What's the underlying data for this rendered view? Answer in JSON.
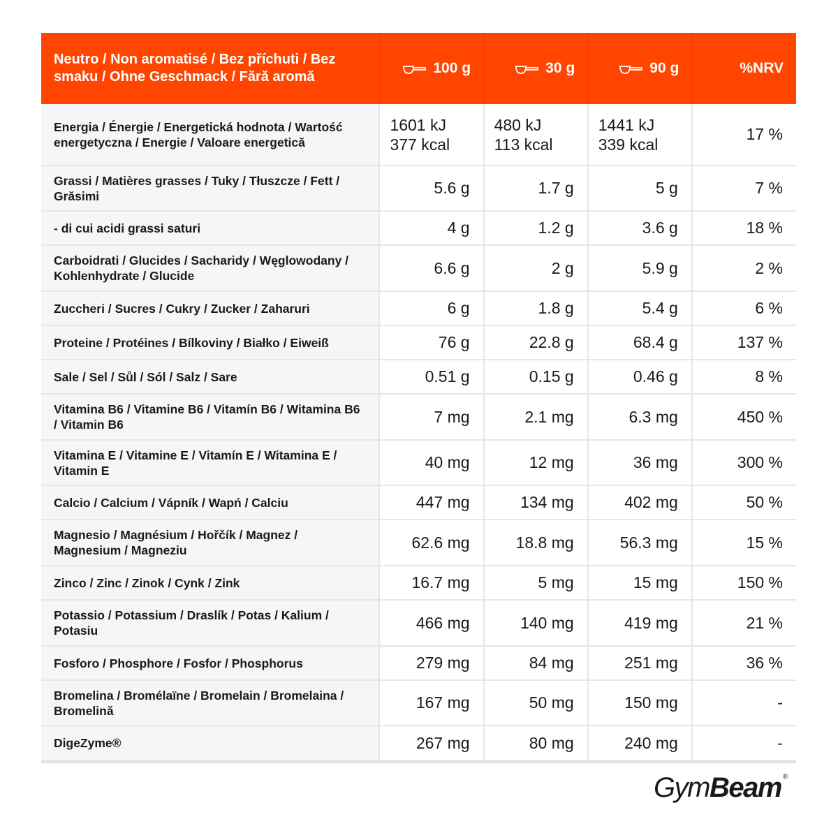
{
  "header": {
    "label": "Neutro / Non aromatisé / Bez příchuti / Bez smaku / Ohne Geschmack / Fără aromă",
    "col1": "100 g",
    "col2": "30 g",
    "col3": "90 g",
    "col4": "%NRV",
    "scoop_icon": "scoop-icon"
  },
  "rows": [
    {
      "name": "Energia / Énergie / Energetická hodnota / Wartość energetyczna / Energie / Valoare energetică",
      "v1a": "1601 kJ",
      "v1b": "377 kcal",
      "v2a": "480 kJ",
      "v2b": "113 kcal",
      "v3a": "1441 kJ",
      "v3b": "339 kcal",
      "nrv": "17 %"
    },
    {
      "name": "Grassi / Matières grasses / Tuky / Tłuszcze / Fett / Grăsimi",
      "v1": "5.6 g",
      "v2": "1.7 g",
      "v3": "5 g",
      "nrv": "7 %"
    },
    {
      "name": "- di cui acidi grassi saturi",
      "v1": "4 g",
      "v2": "1.2 g",
      "v3": "3.6 g",
      "nrv": "18 %"
    },
    {
      "name": "Carboidrati / Glucides / Sacharidy / Węglowodany / Kohlenhydrate / Glucide",
      "v1": "6.6 g",
      "v2": "2 g",
      "v3": "5.9 g",
      "nrv": "2 %"
    },
    {
      "name": "Zuccheri / Sucres / Cukry / Zucker / Zaharuri",
      "v1": "6 g",
      "v2": "1.8 g",
      "v3": "5.4 g",
      "nrv": "6 %"
    },
    {
      "name": "Proteine / Protéines / Bílkoviny / Białko / Eiweiß",
      "v1": "76 g",
      "v2": "22.8 g",
      "v3": "68.4 g",
      "nrv": "137 %"
    },
    {
      "name": "Sale / Sel / Sůl / Sól / Salz / Sare",
      "v1": "0.51 g",
      "v2": "0.15 g",
      "v3": "0.46 g",
      "nrv": "8 %"
    },
    {
      "name": "Vitamina B6 / Vitamine B6 / Vitamín B6 / Witamina B6 / Vitamin B6",
      "v1": "7 mg",
      "v2": "2.1 mg",
      "v3": "6.3 mg",
      "nrv": "450 %"
    },
    {
      "name": "Vitamina E / Vitamine E / Vitamín E / Witamina E / Vitamin E",
      "v1": "40 mg",
      "v2": "12 mg",
      "v3": "36 mg",
      "nrv": "300 %"
    },
    {
      "name": "Calcio / Calcium / Vápník / Wapń / Calciu",
      "v1": "447 mg",
      "v2": "134 mg",
      "v3": "402 mg",
      "nrv": "50 %"
    },
    {
      "name": "Magnesio / Magnésium / Hořčík / Magnez / Magnesium / Magneziu",
      "v1": "62.6 mg",
      "v2": "18.8 mg",
      "v3": "56.3 mg",
      "nrv": "15 %"
    },
    {
      "name": "Zinco / Zinc / Zinok / Cynk / Zink",
      "v1": "16.7 mg",
      "v2": "5 mg",
      "v3": "15 mg",
      "nrv": "150 %"
    },
    {
      "name": "Potassio / Potassium / Draslík / Potas / Kalium / Potasiu",
      "v1": "466 mg",
      "v2": "140 mg",
      "v3": "419 mg",
      "nrv": "21 %"
    },
    {
      "name": "Fosforo / Phosphore / Fosfor / Phosphorus",
      "v1": "279 mg",
      "v2": "84 mg",
      "v3": "251 mg",
      "nrv": "36 %"
    },
    {
      "name": "Bromelina / Bromélaïne / Bromelain / Bromelaina / Bromelină",
      "v1": "167 mg",
      "v2": "50 mg",
      "v3": "150 mg",
      "nrv": "-"
    },
    {
      "name": "DigeZyme®",
      "v1": "267 mg",
      "v2": "80 mg",
      "v3": "240 mg",
      "nrv": "-"
    }
  ],
  "logo": {
    "part1": "Gym",
    "part2": "Beam",
    "mark": "®"
  },
  "colors": {
    "header_bg": "#ff4500",
    "label_bg": "#f5f6f7",
    "grid": "#e4e7ea"
  }
}
